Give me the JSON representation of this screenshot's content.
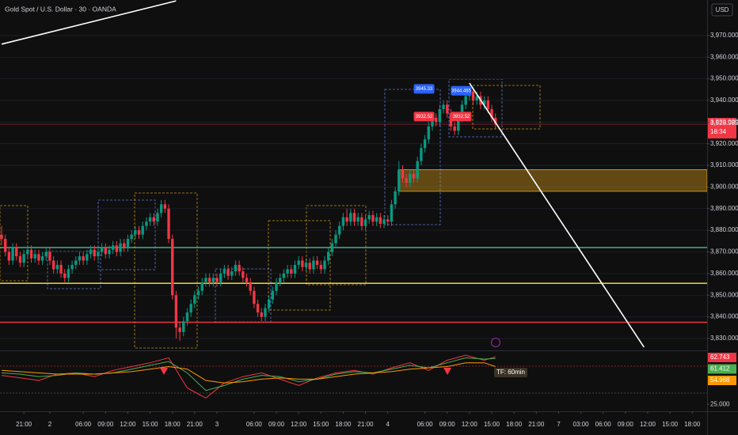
{
  "chart_data": {
    "type": "candlestick",
    "title": "Gold Spot / U.S. Dollar · 30 · OANDA",
    "currency": "USD",
    "up_color": "#089981",
    "down_color": "#f23645",
    "xlim": [
      0,
      190
    ],
    "xticks": [
      {
        "value": 6,
        "label": "21:00"
      },
      {
        "value": 13,
        "label": "2"
      },
      {
        "value": 22,
        "label": "06:00"
      },
      {
        "value": 28,
        "label": "09:00"
      },
      {
        "value": 34,
        "label": "12:00"
      },
      {
        "value": 40,
        "label": "15:00"
      },
      {
        "value": 46,
        "label": "18:00"
      },
      {
        "value": 52,
        "label": "21:00"
      },
      {
        "value": 58,
        "label": "3"
      },
      {
        "value": 68,
        "label": "06:00"
      },
      {
        "value": 74,
        "label": "09:00"
      },
      {
        "value": 80,
        "label": "12:00"
      },
      {
        "value": 86,
        "label": "15:00"
      },
      {
        "value": 92,
        "label": "18:00"
      },
      {
        "value": 98,
        "label": "21:00"
      },
      {
        "value": 104,
        "label": "4"
      },
      {
        "value": 114,
        "label": "06:00"
      },
      {
        "value": 120,
        "label": "09:00"
      },
      {
        "value": 126,
        "label": "12:00"
      },
      {
        "value": 132,
        "label": "15:00"
      },
      {
        "value": 138,
        "label": "18:00"
      },
      {
        "value": 144,
        "label": "21:00"
      },
      {
        "value": 150,
        "label": "7"
      },
      {
        "value": 156,
        "label": "03:00"
      },
      {
        "value": 162,
        "label": "06:00"
      },
      {
        "value": 168,
        "label": "09:00"
      },
      {
        "value": 174,
        "label": "12:00"
      },
      {
        "value": 180,
        "label": "15:00"
      },
      {
        "value": 186,
        "label": "18:00"
      }
    ],
    "ylim": [
      3824.5,
      3986.4
    ],
    "yticks": [
      {
        "value": 3830,
        "label": "3,830.000"
      },
      {
        "value": 3840,
        "label": "3,840.000"
      },
      {
        "value": 3850,
        "label": "3,850.000"
      },
      {
        "value": 3860,
        "label": "3,860.000"
      },
      {
        "value": 3870,
        "label": "3,870.000"
      },
      {
        "value": 3880,
        "label": "3,880.000"
      },
      {
        "value": 3890,
        "label": "3,890.000"
      },
      {
        "value": 3900,
        "label": "3,900.000"
      },
      {
        "value": 3910,
        "label": "3,910.000"
      },
      {
        "value": 3920,
        "label": "3,920.000"
      },
      {
        "value": 3930,
        "label": "3,930.000"
      },
      {
        "value": 3940,
        "label": "3,940.000"
      },
      {
        "value": 3950,
        "label": "3,950.000"
      },
      {
        "value": 3960,
        "label": "3,960.000"
      },
      {
        "value": 3970,
        "label": "3,970.000"
      }
    ],
    "grid": true,
    "candles": [
      [
        3878,
        3882,
        3873,
        3876
      ],
      [
        3876,
        3878,
        3868,
        3870
      ],
      [
        3870,
        3872,
        3864,
        3866
      ],
      [
        3866,
        3874,
        3864,
        3872
      ],
      [
        3872,
        3874,
        3866,
        3868
      ],
      [
        3868,
        3870,
        3863,
        3865
      ],
      [
        3865,
        3871,
        3863,
        3869
      ],
      [
        3869,
        3873,
        3867,
        3871
      ],
      [
        3871,
        3873,
        3865,
        3867
      ],
      [
        3867,
        3871,
        3865,
        3869
      ],
      [
        3869,
        3871,
        3864,
        3866
      ],
      [
        3866,
        3870,
        3864,
        3868
      ],
      [
        3868,
        3872,
        3866,
        3870
      ],
      [
        3870,
        3872,
        3864,
        3866
      ],
      [
        3866,
        3868,
        3860,
        3862
      ],
      [
        3862,
        3866,
        3860,
        3864
      ],
      [
        3864,
        3866,
        3858,
        3860
      ],
      [
        3860,
        3862,
        3856,
        3858
      ],
      [
        3858,
        3864,
        3856,
        3862
      ],
      [
        3862,
        3866,
        3860,
        3864
      ],
      [
        3864,
        3868,
        3862,
        3866
      ],
      [
        3866,
        3870,
        3864,
        3868
      ],
      [
        3868,
        3870,
        3864,
        3866
      ],
      [
        3866,
        3871,
        3864,
        3869
      ],
      [
        3869,
        3873,
        3867,
        3871
      ],
      [
        3871,
        3873,
        3866,
        3868
      ],
      [
        3868,
        3872,
        3866,
        3870
      ],
      [
        3870,
        3874,
        3868,
        3872
      ],
      [
        3872,
        3874,
        3867,
        3869
      ],
      [
        3869,
        3873,
        3867,
        3871
      ],
      [
        3871,
        3875,
        3869,
        3873
      ],
      [
        3873,
        3875,
        3868,
        3870
      ],
      [
        3870,
        3876,
        3868,
        3874
      ],
      [
        3874,
        3876,
        3870,
        3872
      ],
      [
        3872,
        3878,
        3870,
        3876
      ],
      [
        3876,
        3880,
        3874,
        3878
      ],
      [
        3878,
        3882,
        3876,
        3880
      ],
      [
        3880,
        3882,
        3876,
        3878
      ],
      [
        3878,
        3884,
        3876,
        3882
      ],
      [
        3882,
        3886,
        3880,
        3884
      ],
      [
        3884,
        3888,
        3882,
        3886
      ],
      [
        3886,
        3888,
        3882,
        3884
      ],
      [
        3884,
        3890,
        3882,
        3888
      ],
      [
        3888,
        3894,
        3886,
        3892
      ],
      [
        3892,
        3894,
        3888,
        3890
      ],
      [
        3890,
        3892,
        3874,
        3876
      ],
      [
        3876,
        3878,
        3848,
        3850
      ],
      [
        3850,
        3852,
        3830,
        3835
      ],
      [
        3835,
        3838,
        3829,
        3833
      ],
      [
        3833,
        3840,
        3831,
        3838
      ],
      [
        3838,
        3844,
        3836,
        3842
      ],
      [
        3842,
        3848,
        3840,
        3846
      ],
      [
        3846,
        3852,
        3844,
        3850
      ],
      [
        3850,
        3854,
        3848,
        3852
      ],
      [
        3852,
        3858,
        3850,
        3856
      ],
      [
        3856,
        3860,
        3854,
        3858
      ],
      [
        3858,
        3860,
        3854,
        3856
      ],
      [
        3856,
        3860,
        3854,
        3858
      ],
      [
        3858,
        3860,
        3854,
        3856
      ],
      [
        3856,
        3862,
        3854,
        3860
      ],
      [
        3860,
        3864,
        3858,
        3862
      ],
      [
        3862,
        3864,
        3857,
        3859
      ],
      [
        3859,
        3863,
        3857,
        3861
      ],
      [
        3861,
        3866,
        3859,
        3864
      ],
      [
        3864,
        3866,
        3859,
        3861
      ],
      [
        3861,
        3863,
        3856,
        3858
      ],
      [
        3858,
        3860,
        3854,
        3856
      ],
      [
        3856,
        3858,
        3850,
        3852
      ],
      [
        3852,
        3854,
        3844,
        3846
      ],
      [
        3846,
        3848,
        3840,
        3842
      ],
      [
        3842,
        3844,
        3838,
        3840
      ],
      [
        3840,
        3846,
        3838,
        3844
      ],
      [
        3844,
        3850,
        3842,
        3848
      ],
      [
        3848,
        3854,
        3846,
        3852
      ],
      [
        3852,
        3858,
        3850,
        3856
      ],
      [
        3856,
        3860,
        3854,
        3858
      ],
      [
        3858,
        3862,
        3856,
        3860
      ],
      [
        3860,
        3864,
        3858,
        3862
      ],
      [
        3862,
        3864,
        3858,
        3860
      ],
      [
        3860,
        3866,
        3858,
        3864
      ],
      [
        3864,
        3868,
        3862,
        3866
      ],
      [
        3866,
        3868,
        3861,
        3863
      ],
      [
        3863,
        3867,
        3861,
        3865
      ],
      [
        3865,
        3867,
        3860,
        3862
      ],
      [
        3862,
        3868,
        3860,
        3866
      ],
      [
        3866,
        3868,
        3862,
        3864
      ],
      [
        3864,
        3866,
        3860,
        3862
      ],
      [
        3862,
        3868,
        3860,
        3866
      ],
      [
        3866,
        3872,
        3864,
        3870
      ],
      [
        3870,
        3876,
        3868,
        3874
      ],
      [
        3874,
        3880,
        3872,
        3878
      ],
      [
        3878,
        3884,
        3876,
        3882
      ],
      [
        3882,
        3888,
        3880,
        3886
      ],
      [
        3886,
        3890,
        3882,
        3884
      ],
      [
        3884,
        3890,
        3882,
        3888
      ],
      [
        3888,
        3890,
        3882,
        3884
      ],
      [
        3884,
        3888,
        3882,
        3886
      ],
      [
        3886,
        3888,
        3880,
        3882
      ],
      [
        3882,
        3887,
        3880,
        3885
      ],
      [
        3885,
        3889,
        3883,
        3887
      ],
      [
        3887,
        3889,
        3882,
        3884
      ],
      [
        3884,
        3888,
        3882,
        3886
      ],
      [
        3886,
        3888,
        3881,
        3883
      ],
      [
        3883,
        3887,
        3881,
        3885
      ],
      [
        3885,
        3887,
        3882,
        3884
      ],
      [
        3884,
        3894,
        3882,
        3892
      ],
      [
        3892,
        3900,
        3890,
        3898
      ],
      [
        3898,
        3912,
        3896,
        3908
      ],
      [
        3908,
        3910,
        3902,
        3904
      ],
      [
        3904,
        3906,
        3900,
        3902
      ],
      [
        3902,
        3908,
        3900,
        3906
      ],
      [
        3906,
        3908,
        3902,
        3904
      ],
      [
        3904,
        3914,
        3902,
        3912
      ],
      [
        3912,
        3920,
        3910,
        3918
      ],
      [
        3918,
        3924,
        3916,
        3922
      ],
      [
        3922,
        3930,
        3920,
        3928
      ],
      [
        3928,
        3934,
        3926,
        3932
      ],
      [
        3932,
        3934,
        3928,
        3930
      ],
      [
        3930,
        3938,
        3928,
        3936
      ],
      [
        3936,
        3940,
        3934,
        3938
      ],
      [
        3938,
        3940,
        3932,
        3934
      ],
      [
        3934,
        3936,
        3926,
        3928
      ],
      [
        3928,
        3930,
        3924,
        3926
      ],
      [
        3926,
        3934,
        3924,
        3932
      ],
      [
        3932,
        3940,
        3930,
        3938
      ],
      [
        3938,
        3944,
        3936,
        3942
      ],
      [
        3942,
        3946,
        3940,
        3944
      ],
      [
        3944,
        3946,
        3938,
        3940
      ],
      [
        3940,
        3944,
        3938,
        3942
      ],
      [
        3942,
        3944,
        3936,
        3938
      ],
      [
        3938,
        3942,
        3936,
        3940
      ],
      [
        3940,
        3942,
        3934,
        3936
      ],
      [
        3936,
        3938,
        3930,
        3932
      ],
      [
        3932,
        3934,
        3927,
        3929
      ]
    ],
    "levels": [
      {
        "value": 3872,
        "color": "#4dd0a1"
      },
      {
        "value": 3855.5,
        "color": "#ffeb3b"
      },
      {
        "value": 3837.5,
        "color": "#f23645"
      }
    ],
    "zone": {
      "x": 107,
      "from": 3898,
      "to": 3908,
      "color": "#c8901a"
    },
    "trendlines": [
      {
        "x": [
          126,
          173
        ],
        "y": [
          3948,
          3826
        ],
        "color": "#ffffff"
      },
      {
        "x": [
          0,
          47
        ],
        "y": [
          3966,
          3986
        ],
        "color": "#ffffff"
      }
    ],
    "price_labels": [
      {
        "value": 3945.33,
        "x": 111,
        "color": "#2962ff"
      },
      {
        "value": 3944.465,
        "x": 121,
        "color": "#2962ff"
      },
      {
        "value": 3932.52,
        "x": 111,
        "color": "#f23645"
      },
      {
        "value": 3932.52,
        "x": 121,
        "color": "#f23645"
      }
    ],
    "last_price": {
      "value": 3928.985,
      "label": "3,928.985",
      "time": "18:34",
      "color": "#f23645"
    },
    "indicator": {
      "label": "TF: 60min",
      "y2lim": [
        22,
        66
      ],
      "y2ticks": [
        {
          "value": 25,
          "label": "25.000"
        }
      ],
      "x": [
        0,
        5,
        10,
        15,
        20,
        25,
        30,
        35,
        40,
        45,
        50,
        55,
        60,
        65,
        70,
        75,
        80,
        85,
        90,
        95,
        100,
        105,
        110,
        115,
        120,
        125,
        130,
        133
      ],
      "series": [
        {
          "color": "#f23645",
          "values": [
            48,
            46,
            44,
            49,
            50,
            47,
            52,
            55,
            58,
            62,
            38,
            30,
            42,
            47,
            50,
            45,
            40,
            46,
            50,
            52,
            49,
            54,
            58,
            52,
            60,
            64,
            60,
            62.743
          ]
        },
        {
          "color": "#4caf50",
          "values": [
            50,
            49,
            47,
            48,
            50,
            49,
            50,
            53,
            56,
            59,
            50,
            36,
            40,
            45,
            48,
            47,
            43,
            45,
            49,
            51,
            50,
            53,
            56,
            54,
            58,
            62,
            61,
            61.412
          ]
        },
        {
          "color": "#ff9800",
          "values": [
            52,
            51,
            50,
            49,
            49,
            49,
            50,
            51,
            53,
            55,
            53,
            44,
            42,
            43,
            45,
            46,
            45,
            45,
            47,
            49,
            50,
            51,
            53,
            54,
            55,
            58,
            58,
            54.988
          ]
        }
      ]
    }
  }
}
